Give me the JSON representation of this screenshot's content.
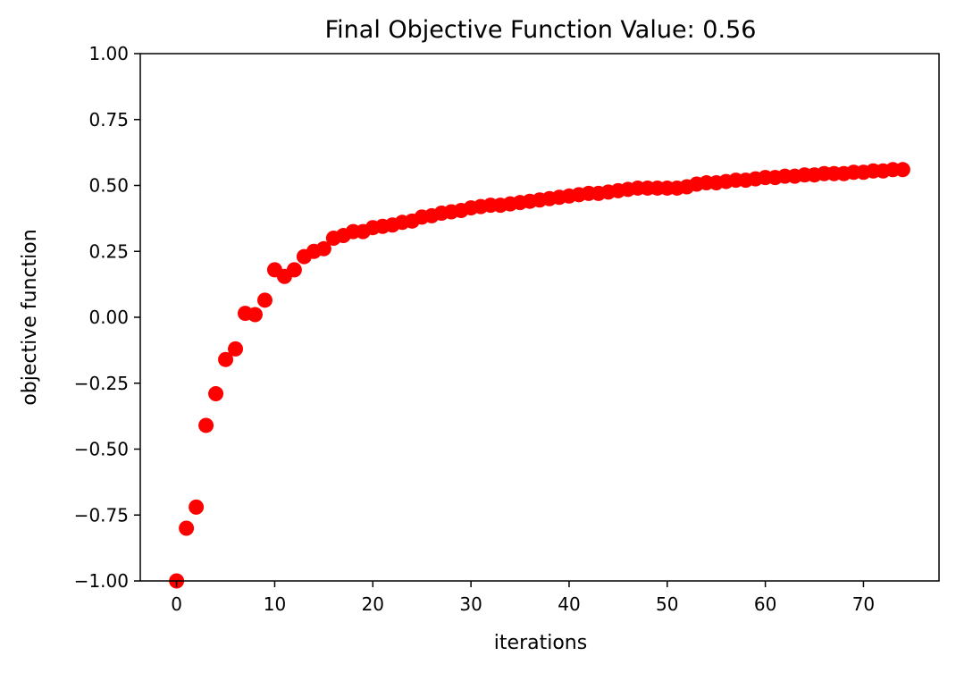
{
  "chart_data": {
    "type": "scatter",
    "title": "Final Objective Function Value: 0.56",
    "xlabel": "iterations",
    "ylabel": "objective function",
    "xlim": [
      -3.7,
      77.7
    ],
    "ylim": [
      -1.0,
      1.0
    ],
    "xticks": [
      0,
      10,
      20,
      30,
      40,
      50,
      60,
      70
    ],
    "yticks": [
      -1.0,
      -0.75,
      -0.5,
      -0.25,
      0.0,
      0.25,
      0.5,
      0.75,
      1.0
    ],
    "xtick_labels": [
      "0",
      "10",
      "20",
      "30",
      "40",
      "50",
      "60",
      "70"
    ],
    "ytick_labels": [
      "−1.00",
      "−0.75",
      "−0.50",
      "−0.25",
      "0.00",
      "0.25",
      "0.50",
      "0.75",
      "1.00"
    ],
    "grid": false,
    "marker_color": "#ff0000",
    "x": [
      0,
      1,
      2,
      3,
      4,
      5,
      6,
      7,
      8,
      9,
      10,
      11,
      12,
      13,
      14,
      15,
      16,
      17,
      18,
      19,
      20,
      21,
      22,
      23,
      24,
      25,
      26,
      27,
      28,
      29,
      30,
      31,
      32,
      33,
      34,
      35,
      36,
      37,
      38,
      39,
      40,
      41,
      42,
      43,
      44,
      45,
      46,
      47,
      48,
      49,
      50,
      51,
      52,
      53,
      54,
      55,
      56,
      57,
      58,
      59,
      60,
      61,
      62,
      63,
      64,
      65,
      66,
      67,
      68,
      69,
      70,
      71,
      72,
      73,
      74
    ],
    "y": [
      -1.0,
      -0.8,
      -0.72,
      -0.41,
      -0.29,
      -0.16,
      -0.12,
      0.015,
      0.01,
      0.065,
      0.18,
      0.155,
      0.18,
      0.23,
      0.25,
      0.26,
      0.3,
      0.31,
      0.325,
      0.325,
      0.34,
      0.345,
      0.35,
      0.36,
      0.365,
      0.38,
      0.385,
      0.395,
      0.4,
      0.405,
      0.415,
      0.42,
      0.425,
      0.425,
      0.43,
      0.435,
      0.44,
      0.445,
      0.45,
      0.455,
      0.46,
      0.465,
      0.47,
      0.47,
      0.475,
      0.48,
      0.485,
      0.49,
      0.49,
      0.49,
      0.49,
      0.49,
      0.495,
      0.505,
      0.51,
      0.51,
      0.515,
      0.52,
      0.52,
      0.525,
      0.53,
      0.53,
      0.535,
      0.535,
      0.54,
      0.54,
      0.545,
      0.545,
      0.545,
      0.55,
      0.55,
      0.555,
      0.555,
      0.56,
      0.56
    ]
  }
}
